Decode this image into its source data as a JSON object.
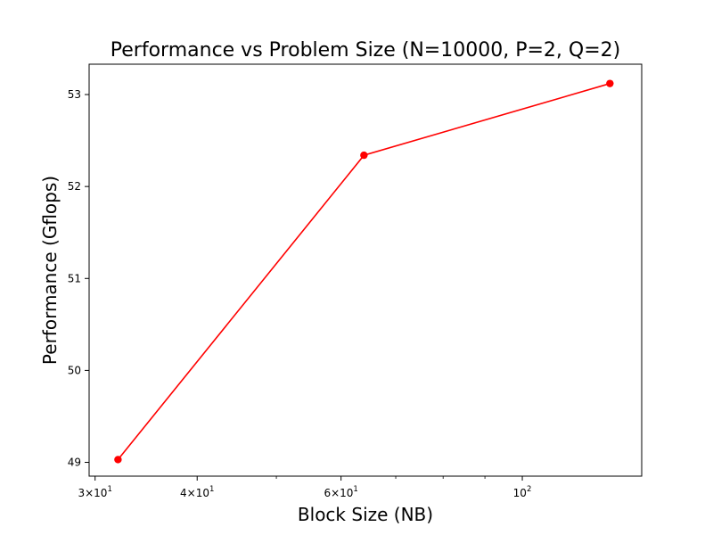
{
  "chart_data": {
    "type": "line",
    "title": "Performance vs Problem Size (N=10000, P=2, Q=2)",
    "xlabel": "Block Size (NB)",
    "ylabel": "Performance (Gflops)",
    "x_scale": "log",
    "xlim": [
      29.5,
      140
    ],
    "ylim": [
      48.85,
      53.33
    ],
    "grid": false,
    "x_ticks": [
      {
        "value": 30,
        "base": "3×10",
        "exp": "1"
      },
      {
        "value": 40,
        "base": "4×10",
        "exp": "1"
      },
      {
        "value": 60,
        "base": "6×10",
        "exp": "1"
      },
      {
        "value": 100,
        "base": "10",
        "exp": "2"
      }
    ],
    "x_minor_ticks": [
      50,
      70,
      80,
      90
    ],
    "y_ticks": [
      {
        "value": 49,
        "label": "49"
      },
      {
        "value": 50,
        "label": "50"
      },
      {
        "value": 51,
        "label": "51"
      },
      {
        "value": 52,
        "label": "52"
      },
      {
        "value": 53,
        "label": "53"
      }
    ],
    "series": [
      {
        "color": "#ff0000",
        "marker": "circle",
        "x": [
          32,
          64,
          128
        ],
        "y": [
          49.03,
          52.34,
          53.12
        ]
      }
    ]
  }
}
